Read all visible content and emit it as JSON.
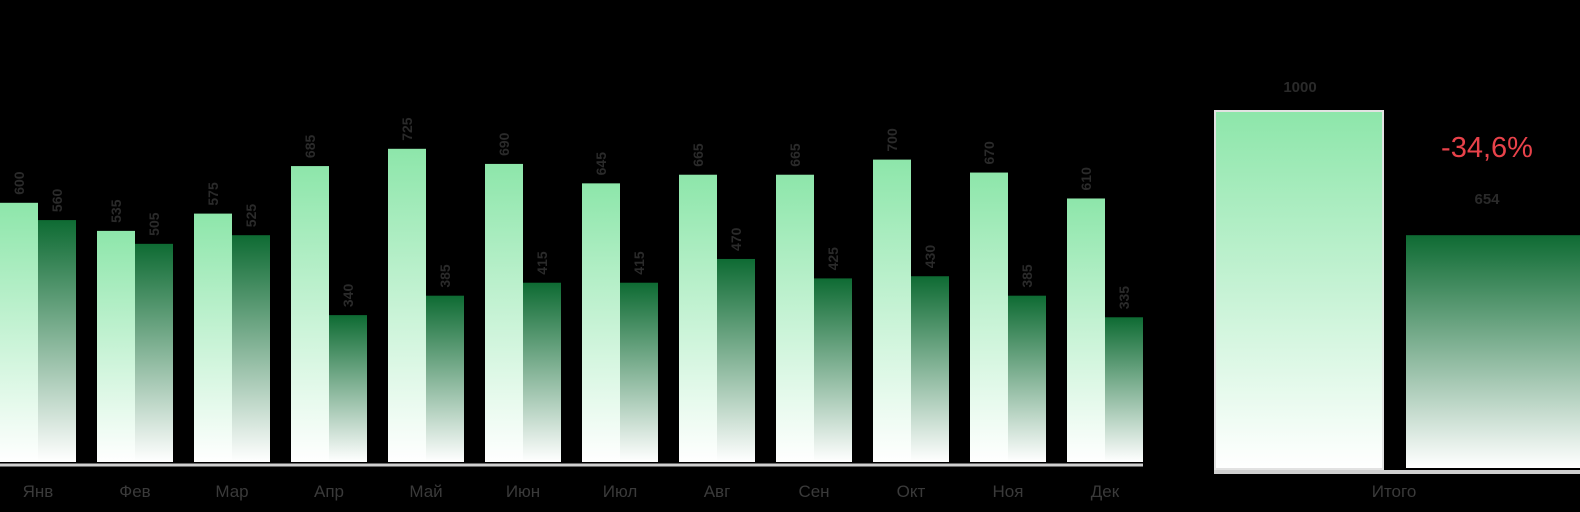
{
  "chart_data": {
    "type": "bar",
    "categories": [
      "Янв",
      "Фев",
      "Мар",
      "Апр",
      "Май",
      "Июн",
      "Июл",
      "Авг",
      "Сен",
      "Окт",
      "Ноя",
      "Дек"
    ],
    "series": [
      {
        "values": [
          600,
          535,
          575,
          685,
          725,
          690,
          645,
          665,
          665,
          700,
          670,
          610
        ]
      },
      {
        "values": [
          560,
          505,
          525,
          340,
          385,
          415,
          415,
          470,
          425,
          430,
          385,
          335
        ]
      }
    ],
    "totals": {
      "category": "Итого",
      "values": [
        1000,
        654
      ],
      "change_label": "-34,6%",
      "change_color": "#e8424a",
      "light_label": "",
      "dark_label": ""
    },
    "ylim": [
      0,
      1000
    ],
    "colors": {
      "light_top": "#8de6aa",
      "light_bottom": "#ffffff",
      "dark_top": "#0e6b33",
      "dark_bottom": "#ffffff",
      "axis": "#cfcfcf",
      "tick_label": "#3a3a3a",
      "data_label": "#2a2a2a"
    },
    "grid": false,
    "legend": "none"
  }
}
